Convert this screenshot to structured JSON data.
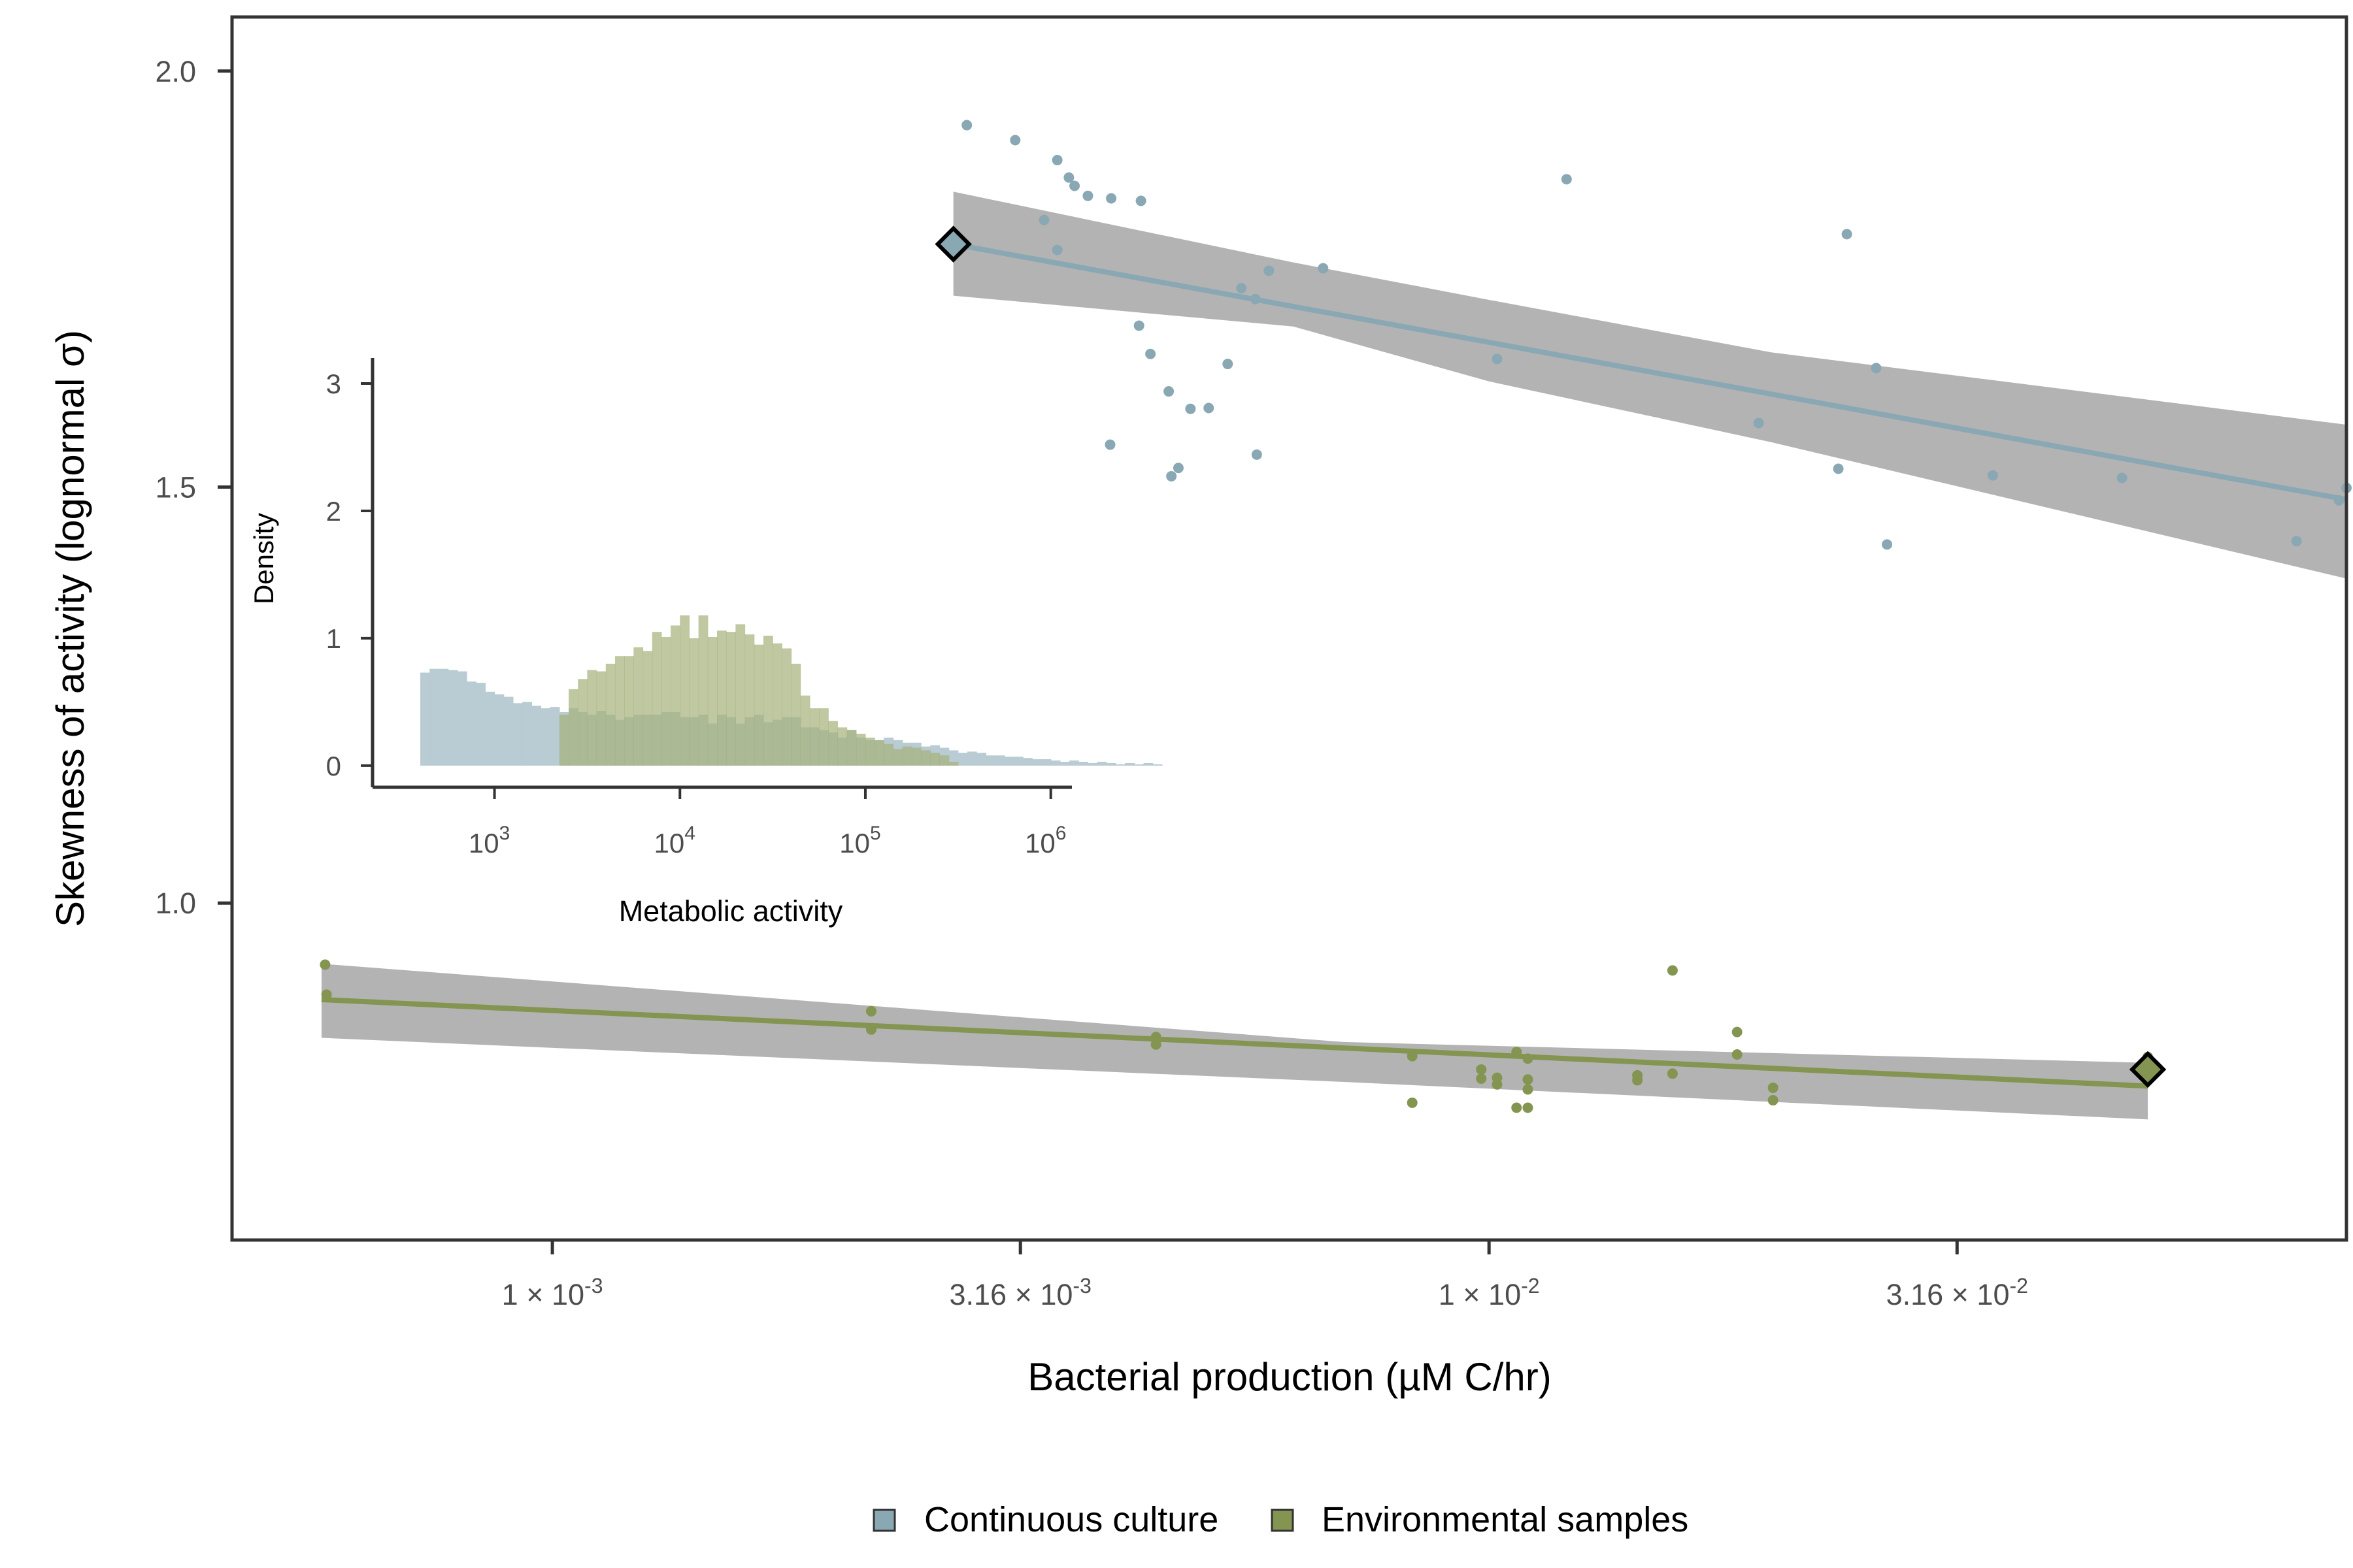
{
  "chart_data": [
    {
      "type": "scatter",
      "xlabel": "Bacterial production (µM C/hr)",
      "ylabel": "Skewness of activity (lognormal σ)",
      "x_scale": "log10",
      "xlim": [
        0.000455,
        0.0823
      ],
      "ylim": [
        0.595,
        2.065
      ],
      "x_ticks": [
        {
          "value": 0.001,
          "mant": "1",
          "exp": "-3"
        },
        {
          "value": 0.00316,
          "mant": "3.16",
          "exp": "-3"
        },
        {
          "value": 0.01,
          "mant": "1",
          "exp": "-2"
        },
        {
          "value": 0.0316,
          "mant": "3.16",
          "exp": "-2"
        }
      ],
      "y_ticks": [
        {
          "value": 1.0,
          "label": "1.0"
        },
        {
          "value": 1.5,
          "label": "1.5"
        },
        {
          "value": 2.0,
          "label": "2.0"
        }
      ],
      "legend": {
        "placement": "bottom-center",
        "entries": [
          {
            "label": "Continuous culture",
            "color": "#8aa8b4"
          },
          {
            "label": "Environmental samples",
            "color": "#839550"
          }
        ]
      },
      "series": [
        {
          "name": "Continuous culture",
          "color": "#8aa8b4",
          "points": [
            [
              0.00277,
              1.935
            ],
            [
              0.00312,
              1.917
            ],
            [
              0.00346,
              1.893
            ],
            [
              0.00356,
              1.872
            ],
            [
              0.00361,
              1.862
            ],
            [
              0.00373,
              1.85
            ],
            [
              0.00395,
              1.847
            ],
            [
              0.00425,
              1.844
            ],
            [
              0.00335,
              1.821
            ],
            [
              0.00346,
              1.785
            ],
            [
              0.00582,
              1.76
            ],
            [
              0.00665,
              1.763
            ],
            [
              0.00544,
              1.739
            ],
            [
              0.00563,
              1.726
            ],
            [
              0.00423,
              1.694
            ],
            [
              0.00435,
              1.66
            ],
            [
              0.00526,
              1.648
            ],
            [
              0.00455,
              1.615
            ],
            [
              0.00502,
              1.595
            ],
            [
              0.0048,
              1.594
            ],
            [
              0.00394,
              1.551
            ],
            [
              0.00565,
              1.539
            ],
            [
              0.00466,
              1.523
            ],
            [
              0.00458,
              1.513
            ],
            [
              0.0121,
              1.87
            ],
            [
              0.0102,
              1.654
            ],
            [
              0.0241,
              1.804
            ],
            [
              0.0194,
              1.577
            ],
            [
              0.0236,
              1.522
            ],
            [
              0.0259,
              1.643
            ],
            [
              0.0266,
              1.431
            ],
            [
              0.0345,
              1.514
            ],
            [
              0.0474,
              1.511
            ],
            [
              0.0728,
              1.435
            ],
            [
              0.0808,
              1.484
            ],
            [
              0.0823,
              1.499
            ]
          ],
          "fit": {
            "x1": 0.00268,
            "y1": 1.792,
            "x2": 0.0823,
            "y2": 1.485
          },
          "ci_upper": [
            [
              0.00268,
              1.855
            ],
            [
              0.00618,
              1.77
            ],
            [
              0.01,
              1.725
            ],
            [
              0.02,
              1.662
            ],
            [
              0.0823,
              1.575
            ]
          ],
          "ci_lower": [
            [
              0.00268,
              1.73
            ],
            [
              0.00618,
              1.693
            ],
            [
              0.01,
              1.627
            ],
            [
              0.02,
              1.554
            ],
            [
              0.0823,
              1.39
            ]
          ],
          "highlight": [
            0.00268,
            1.792
          ]
        },
        {
          "name": "Environmental samples",
          "color": "#839550",
          "points": [
            [
              0.000572,
              0.926
            ],
            [
              0.000574,
              0.89
            ],
            [
              0.00219,
              0.87
            ],
            [
              0.00219,
              0.848
            ],
            [
              0.00441,
              0.839
            ],
            [
              0.00441,
              0.83
            ],
            [
              0.00828,
              0.816
            ],
            [
              0.00828,
              0.76
            ],
            [
              0.00981,
              0.8
            ],
            [
              0.00981,
              0.789
            ],
            [
              0.0102,
              0.79
            ],
            [
              0.0102,
              0.782
            ],
            [
              0.0107,
              0.821
            ],
            [
              0.011,
              0.813
            ],
            [
              0.011,
              0.788
            ],
            [
              0.011,
              0.776
            ],
            [
              0.0107,
              0.754
            ],
            [
              0.011,
              0.754
            ],
            [
              0.0144,
              0.793
            ],
            [
              0.0144,
              0.787
            ],
            [
              0.0157,
              0.919
            ],
            [
              0.0157,
              0.795
            ],
            [
              0.0184,
              0.845
            ],
            [
              0.0184,
              0.818
            ],
            [
              0.0201,
              0.778
            ],
            [
              0.0201,
              0.763
            ],
            [
              0.0505,
              0.815
            ],
            [
              0.0505,
              0.8
            ]
          ],
          "fit": {
            "x1": 0.000567,
            "y1": 0.884,
            "x2": 0.0505,
            "y2": 0.78
          },
          "ci_upper": [
            [
              0.000567,
              0.927
            ],
            [
              0.007,
              0.833
            ],
            [
              0.0505,
              0.808
            ]
          ],
          "ci_lower": [
            [
              0.000567,
              0.838
            ],
            [
              0.007,
              0.785
            ],
            [
              0.0505,
              0.74
            ]
          ],
          "highlight": [
            0.0505,
            0.8
          ]
        }
      ]
    },
    {
      "type": "histogram",
      "placement": "inset",
      "xlabel": "Metabolic activity",
      "ylabel": "Density",
      "x_scale": "log10",
      "xlim": [
        220,
        1300000
      ],
      "ylim": [
        -0.17,
        3.2
      ],
      "x_ticks": [
        {
          "value": 1000,
          "base": "10",
          "exp": "3"
        },
        {
          "value": 10000,
          "base": "10",
          "exp": "4"
        },
        {
          "value": 100000,
          "base": "10",
          "exp": "5"
        },
        {
          "value": 1000000,
          "base": "10",
          "exp": "6"
        }
      ],
      "y_ticks": [
        {
          "value": 0,
          "label": "0"
        },
        {
          "value": 1,
          "label": "1"
        },
        {
          "value": 2,
          "label": "2"
        },
        {
          "value": 3,
          "label": "3"
        }
      ],
      "series": [
        {
          "name": "Continuous culture",
          "color": "#b9cbd3",
          "bin_start_log10": 2.6,
          "bin_width_log10": 0.05,
          "densities": [
            0.73,
            0.76,
            0.76,
            0.75,
            0.74,
            0.66,
            0.65,
            0.58,
            0.56,
            0.54,
            0.49,
            0.5,
            0.47,
            0.45,
            0.46,
            0.42,
            0.45,
            0.42,
            0.4,
            0.43,
            0.4,
            0.36,
            0.38,
            0.4,
            0.4,
            0.4,
            0.42,
            0.42,
            0.38,
            0.38,
            0.4,
            0.33,
            0.4,
            0.38,
            0.33,
            0.38,
            0.4,
            0.34,
            0.36,
            0.38,
            0.38,
            0.3,
            0.3,
            0.28,
            0.26,
            0.22,
            0.28,
            0.22,
            0.2,
            0.2,
            0.22,
            0.2,
            0.18,
            0.18,
            0.15,
            0.16,
            0.14,
            0.12,
            0.1,
            0.11,
            0.1,
            0.08,
            0.08,
            0.07,
            0.07,
            0.06,
            0.05,
            0.05,
            0.04,
            0.03,
            0.04,
            0.03,
            0.02,
            0.03,
            0.02,
            0.01,
            0.02,
            0.01,
            0.02,
            0.01
          ]
        },
        {
          "name": "Environmental samples",
          "color": "#a5b07a",
          "bin_start_log10": 3.35,
          "bin_width_log10": 0.05,
          "densities": [
            0.4,
            0.6,
            0.68,
            0.75,
            0.74,
            0.8,
            0.86,
            0.86,
            0.93,
            0.9,
            1.05,
            1.01,
            1.1,
            1.18,
            1.0,
            1.18,
            1.01,
            1.06,
            1.05,
            1.11,
            1.03,
            0.95,
            1.02,
            0.96,
            0.92,
            0.8,
            0.55,
            0.45,
            0.45,
            0.35,
            0.3,
            0.28,
            0.25,
            0.22,
            0.2,
            0.17,
            0.13,
            0.15,
            0.14,
            0.12,
            0.1,
            0.08,
            0.03
          ]
        }
      ]
    }
  ]
}
